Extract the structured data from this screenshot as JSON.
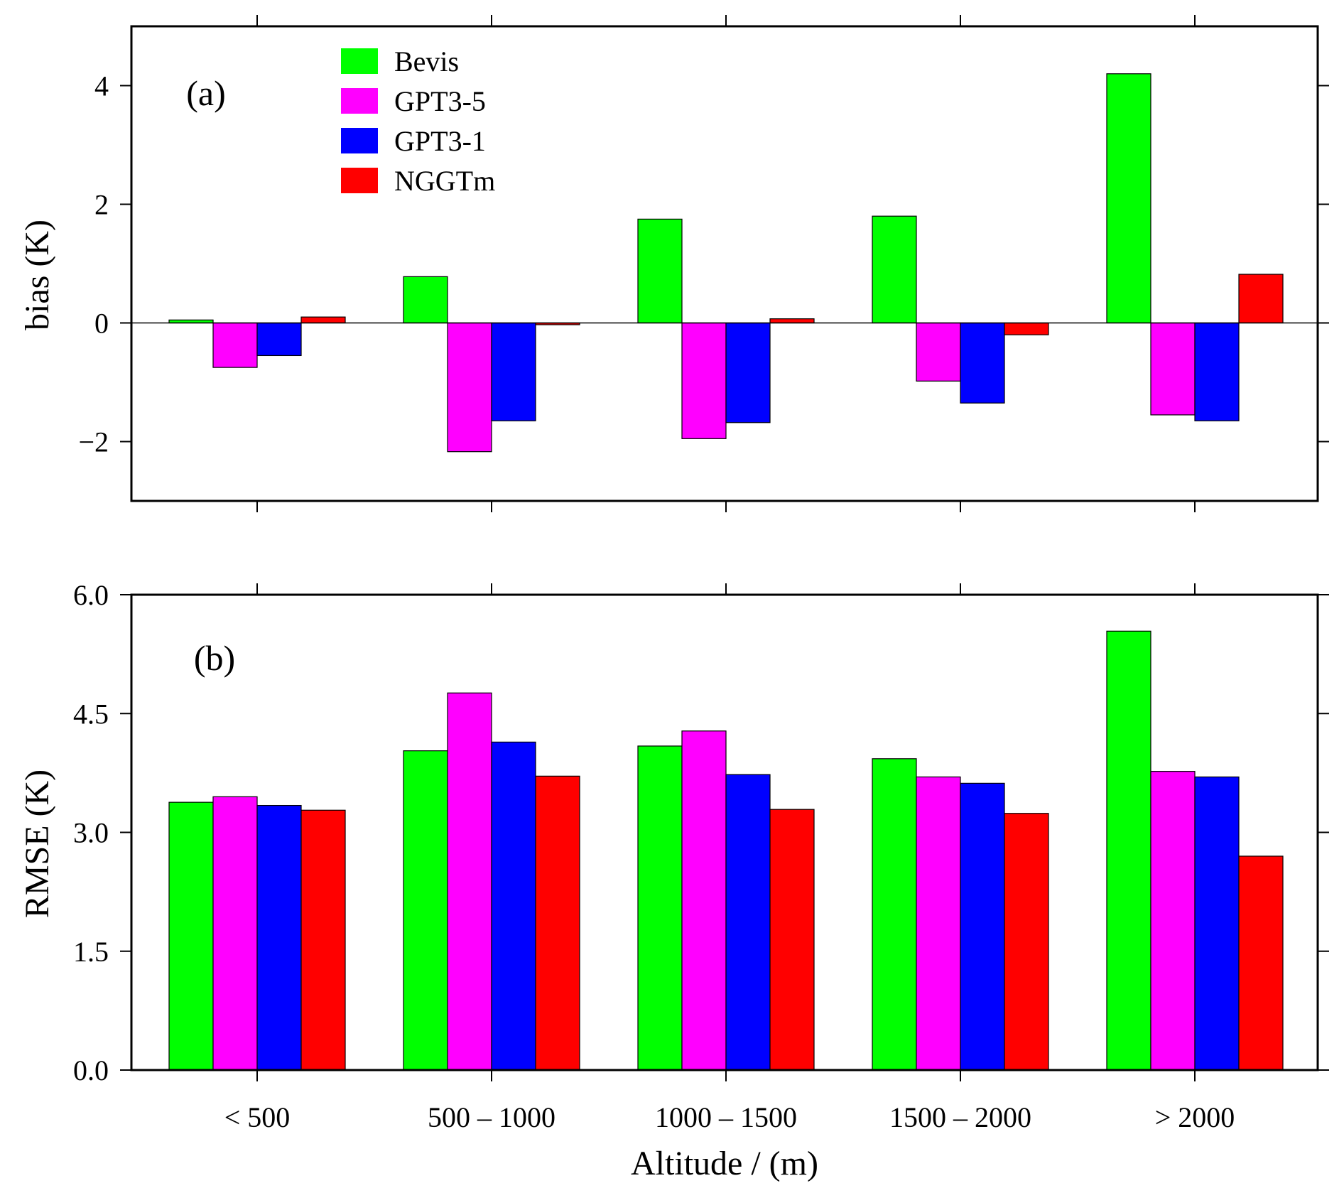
{
  "chart_data": [
    {
      "type": "bar",
      "panel_label": "(a)",
      "categories": [
        "< 500",
        "500 – 1000",
        "1000 – 1500",
        "1500 – 2000",
        "> 2000"
      ],
      "series": [
        {
          "name": "Bevis",
          "color": "#00ff00",
          "values": [
            0.05,
            0.78,
            1.75,
            1.8,
            4.2
          ]
        },
        {
          "name": "GPT3-5",
          "color": "#ff00ff",
          "values": [
            -0.75,
            -2.17,
            -1.95,
            -0.98,
            -1.55
          ]
        },
        {
          "name": "GPT3-1",
          "color": "#0000ff",
          "values": [
            -0.55,
            -1.65,
            -1.68,
            -1.35,
            -1.65
          ]
        },
        {
          "name": "NGGTm",
          "color": "#ff0000",
          "values": [
            0.1,
            -0.03,
            0.07,
            -0.2,
            0.82
          ]
        }
      ],
      "ylabel": "bias (K)",
      "ylim": [
        -3,
        5
      ],
      "yticks": [
        -2,
        0,
        2,
        4
      ],
      "ytick_labels": [
        "−2",
        "0",
        "2",
        "4"
      ],
      "zero_line": true,
      "legend": "top-left"
    },
    {
      "type": "bar",
      "panel_label": "(b)",
      "categories": [
        "< 500",
        "500 – 1000",
        "1000 – 1500",
        "1500 – 2000",
        "> 2000"
      ],
      "series": [
        {
          "name": "Bevis",
          "color": "#00ff00",
          "values": [
            3.38,
            4.03,
            4.09,
            3.93,
            5.54
          ]
        },
        {
          "name": "GPT3-5",
          "color": "#ff00ff",
          "values": [
            3.45,
            4.76,
            4.28,
            3.7,
            3.77
          ]
        },
        {
          "name": "GPT3-1",
          "color": "#0000ff",
          "values": [
            3.34,
            4.14,
            3.73,
            3.62,
            3.7
          ]
        },
        {
          "name": "NGGTm",
          "color": "#ff0000",
          "values": [
            3.28,
            3.71,
            3.29,
            3.24,
            2.7
          ]
        }
      ],
      "ylabel": "RMSE (K)",
      "xlabel": "Altitude / (m)",
      "ylim": [
        0,
        6
      ],
      "yticks": [
        0,
        1.5,
        3,
        4.5,
        6
      ],
      "ytick_labels": [
        "0.0",
        "1.5",
        "3.0",
        "4.5",
        "6.0"
      ]
    }
  ]
}
